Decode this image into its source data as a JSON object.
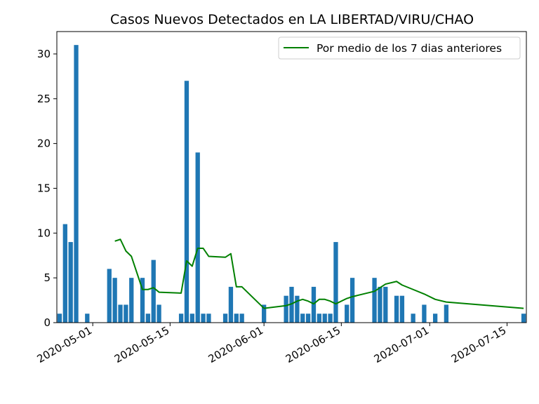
{
  "colors": {
    "bar": "#1f77b4",
    "line": "#008000",
    "axis": "#000000",
    "legend_border": "#cccccc"
  },
  "chart_data": {
    "type": "bar",
    "title": "Casos Nuevos Detectados en LA LIBERTAD/VIRU/CHAO",
    "xlabel": "",
    "ylabel": "",
    "ylim": [
      0,
      32.5
    ],
    "xlim": [
      "2020-04-25",
      "2020-07-18"
    ],
    "grid": false,
    "legend_position": "top-right",
    "x_ticks": [
      "2020-05-01",
      "2020-05-15",
      "2020-06-01",
      "2020-06-15",
      "2020-07-01",
      "2020-07-15"
    ],
    "y_ticks": [
      0,
      5,
      10,
      15,
      20,
      25,
      30
    ],
    "bars": {
      "name": "Casos nuevos",
      "dates": [
        "2020-04-25",
        "2020-04-26",
        "2020-04-27",
        "2020-04-28",
        "2020-04-30",
        "2020-05-04",
        "2020-05-05",
        "2020-05-06",
        "2020-05-07",
        "2020-05-08",
        "2020-05-10",
        "2020-05-11",
        "2020-05-12",
        "2020-05-13",
        "2020-05-17",
        "2020-05-18",
        "2020-05-19",
        "2020-05-20",
        "2020-05-21",
        "2020-05-22",
        "2020-05-25",
        "2020-05-26",
        "2020-05-27",
        "2020-05-28",
        "2020-06-01",
        "2020-06-05",
        "2020-06-06",
        "2020-06-07",
        "2020-06-08",
        "2020-06-09",
        "2020-06-10",
        "2020-06-11",
        "2020-06-12",
        "2020-06-13",
        "2020-06-14",
        "2020-06-16",
        "2020-06-17",
        "2020-06-21",
        "2020-06-22",
        "2020-06-23",
        "2020-06-25",
        "2020-06-26",
        "2020-06-28",
        "2020-06-30",
        "2020-07-02",
        "2020-07-04",
        "2020-07-18"
      ],
      "values": [
        1,
        11,
        9,
        31,
        1,
        6,
        5,
        2,
        2,
        5,
        5,
        1,
        7,
        2,
        1,
        27,
        1,
        19,
        1,
        1,
        1,
        4,
        1,
        1,
        2,
        3,
        4,
        3,
        1,
        1,
        4,
        1,
        1,
        1,
        9,
        2,
        5,
        5,
        4,
        4,
        3,
        3,
        1,
        2,
        1,
        2,
        1
      ]
    },
    "series": [
      {
        "name": "Por medio de los 7 dias anteriores",
        "dates": [
          "2020-05-05",
          "2020-05-06",
          "2020-05-07",
          "2020-05-08",
          "2020-05-10",
          "2020-05-11",
          "2020-05-12",
          "2020-05-13",
          "2020-05-17",
          "2020-05-18",
          "2020-05-19",
          "2020-05-20",
          "2020-05-21",
          "2020-05-22",
          "2020-05-25",
          "2020-05-26",
          "2020-05-27",
          "2020-05-28",
          "2020-06-01",
          "2020-06-05",
          "2020-06-06",
          "2020-06-07",
          "2020-06-08",
          "2020-06-09",
          "2020-06-10",
          "2020-06-11",
          "2020-06-12",
          "2020-06-13",
          "2020-06-14",
          "2020-06-16",
          "2020-06-17",
          "2020-06-21",
          "2020-06-22",
          "2020-06-23",
          "2020-06-25",
          "2020-06-26",
          "2020-06-28",
          "2020-06-30",
          "2020-07-02",
          "2020-07-04",
          "2020-07-18"
        ],
        "values": [
          9.1,
          9.3,
          8.0,
          7.4,
          3.7,
          3.7,
          3.9,
          3.4,
          3.3,
          6.9,
          6.3,
          8.3,
          8.3,
          7.4,
          7.3,
          7.7,
          4.0,
          4.0,
          1.6,
          1.9,
          2.1,
          2.4,
          2.6,
          2.4,
          2.1,
          2.6,
          2.6,
          2.4,
          2.1,
          2.7,
          2.9,
          3.5,
          3.9,
          4.3,
          4.6,
          4.2,
          3.7,
          3.2,
          2.6,
          2.3,
          1.6
        ]
      }
    ]
  }
}
